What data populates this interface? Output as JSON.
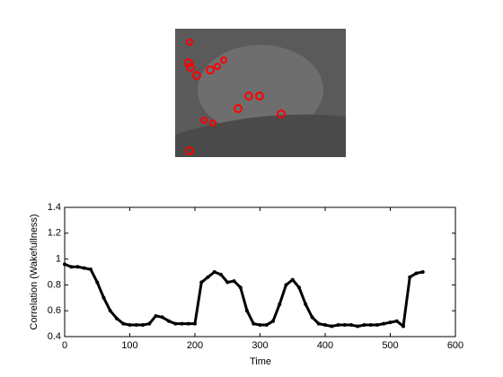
{
  "chart_data": {
    "type": "line",
    "xlabel": "Time",
    "ylabel": "Correlation (Wakefullness)",
    "x": [
      0,
      10,
      20,
      30,
      40,
      50,
      60,
      70,
      80,
      90,
      100,
      110,
      120,
      130,
      140,
      150,
      160,
      170,
      180,
      190,
      200,
      210,
      220,
      230,
      240,
      250,
      260,
      270,
      280,
      290,
      300,
      310,
      320,
      330,
      340,
      350,
      360,
      370,
      380,
      390,
      400,
      410,
      420,
      430,
      440,
      450,
      460,
      470,
      480,
      490,
      500,
      510,
      520,
      530,
      540,
      550
    ],
    "series": [
      {
        "color": "#000000",
        "values": [
          0.96,
          0.94,
          0.94,
          0.93,
          0.92,
          0.82,
          0.7,
          0.6,
          0.54,
          0.5,
          0.49,
          0.49,
          0.49,
          0.5,
          0.56,
          0.55,
          0.52,
          0.5,
          0.5,
          0.5,
          0.5,
          0.82,
          0.86,
          0.9,
          0.88,
          0.82,
          0.83,
          0.78,
          0.6,
          0.5,
          0.49,
          0.49,
          0.52,
          0.65,
          0.8,
          0.84,
          0.78,
          0.65,
          0.55,
          0.5,
          0.49,
          0.48,
          0.49,
          0.49,
          0.49,
          0.48,
          0.49,
          0.49,
          0.49,
          0.5,
          0.51,
          0.52,
          0.48,
          0.86,
          0.89,
          0.9
        ]
      }
    ],
    "xlim": [
      0,
      600
    ],
    "xticks": [
      0,
      100,
      200,
      300,
      400,
      500,
      600
    ],
    "ylim": [
      0.4,
      1.4
    ],
    "yticks": [
      0.4,
      0.6,
      0.8,
      1,
      1.2,
      1.4
    ]
  }
}
